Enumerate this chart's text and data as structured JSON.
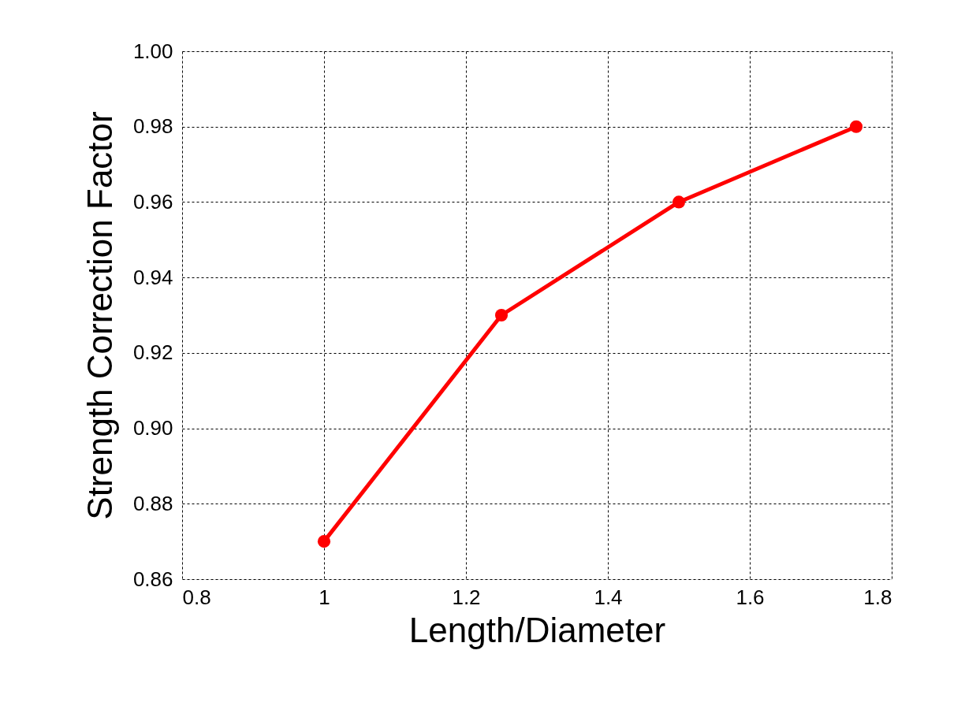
{
  "chart_data": {
    "type": "line",
    "xlabel": "Length/Diameter",
    "ylabel": "Strength Correction Factor",
    "x": [
      1,
      1.25,
      1.5,
      1.75
    ],
    "series": [
      {
        "color": "#ff0000",
        "values": [
          0.87,
          0.93,
          0.96,
          0.98
        ]
      }
    ],
    "xlim": [
      0.8,
      1.8
    ],
    "xticks": [
      0.8,
      1,
      1.2,
      1.4,
      1.6,
      1.8
    ],
    "ylim": [
      0.86,
      1.0
    ],
    "yticks": [
      0.86,
      0.88,
      {
        "value": 0.9,
        "label": "0.90"
      },
      0.92,
      0.94,
      0.96,
      0.98,
      {
        "value": 1.0,
        "label": "1.00"
      }
    ],
    "grid": true,
    "marker": "circle",
    "line_style": "solid"
  }
}
